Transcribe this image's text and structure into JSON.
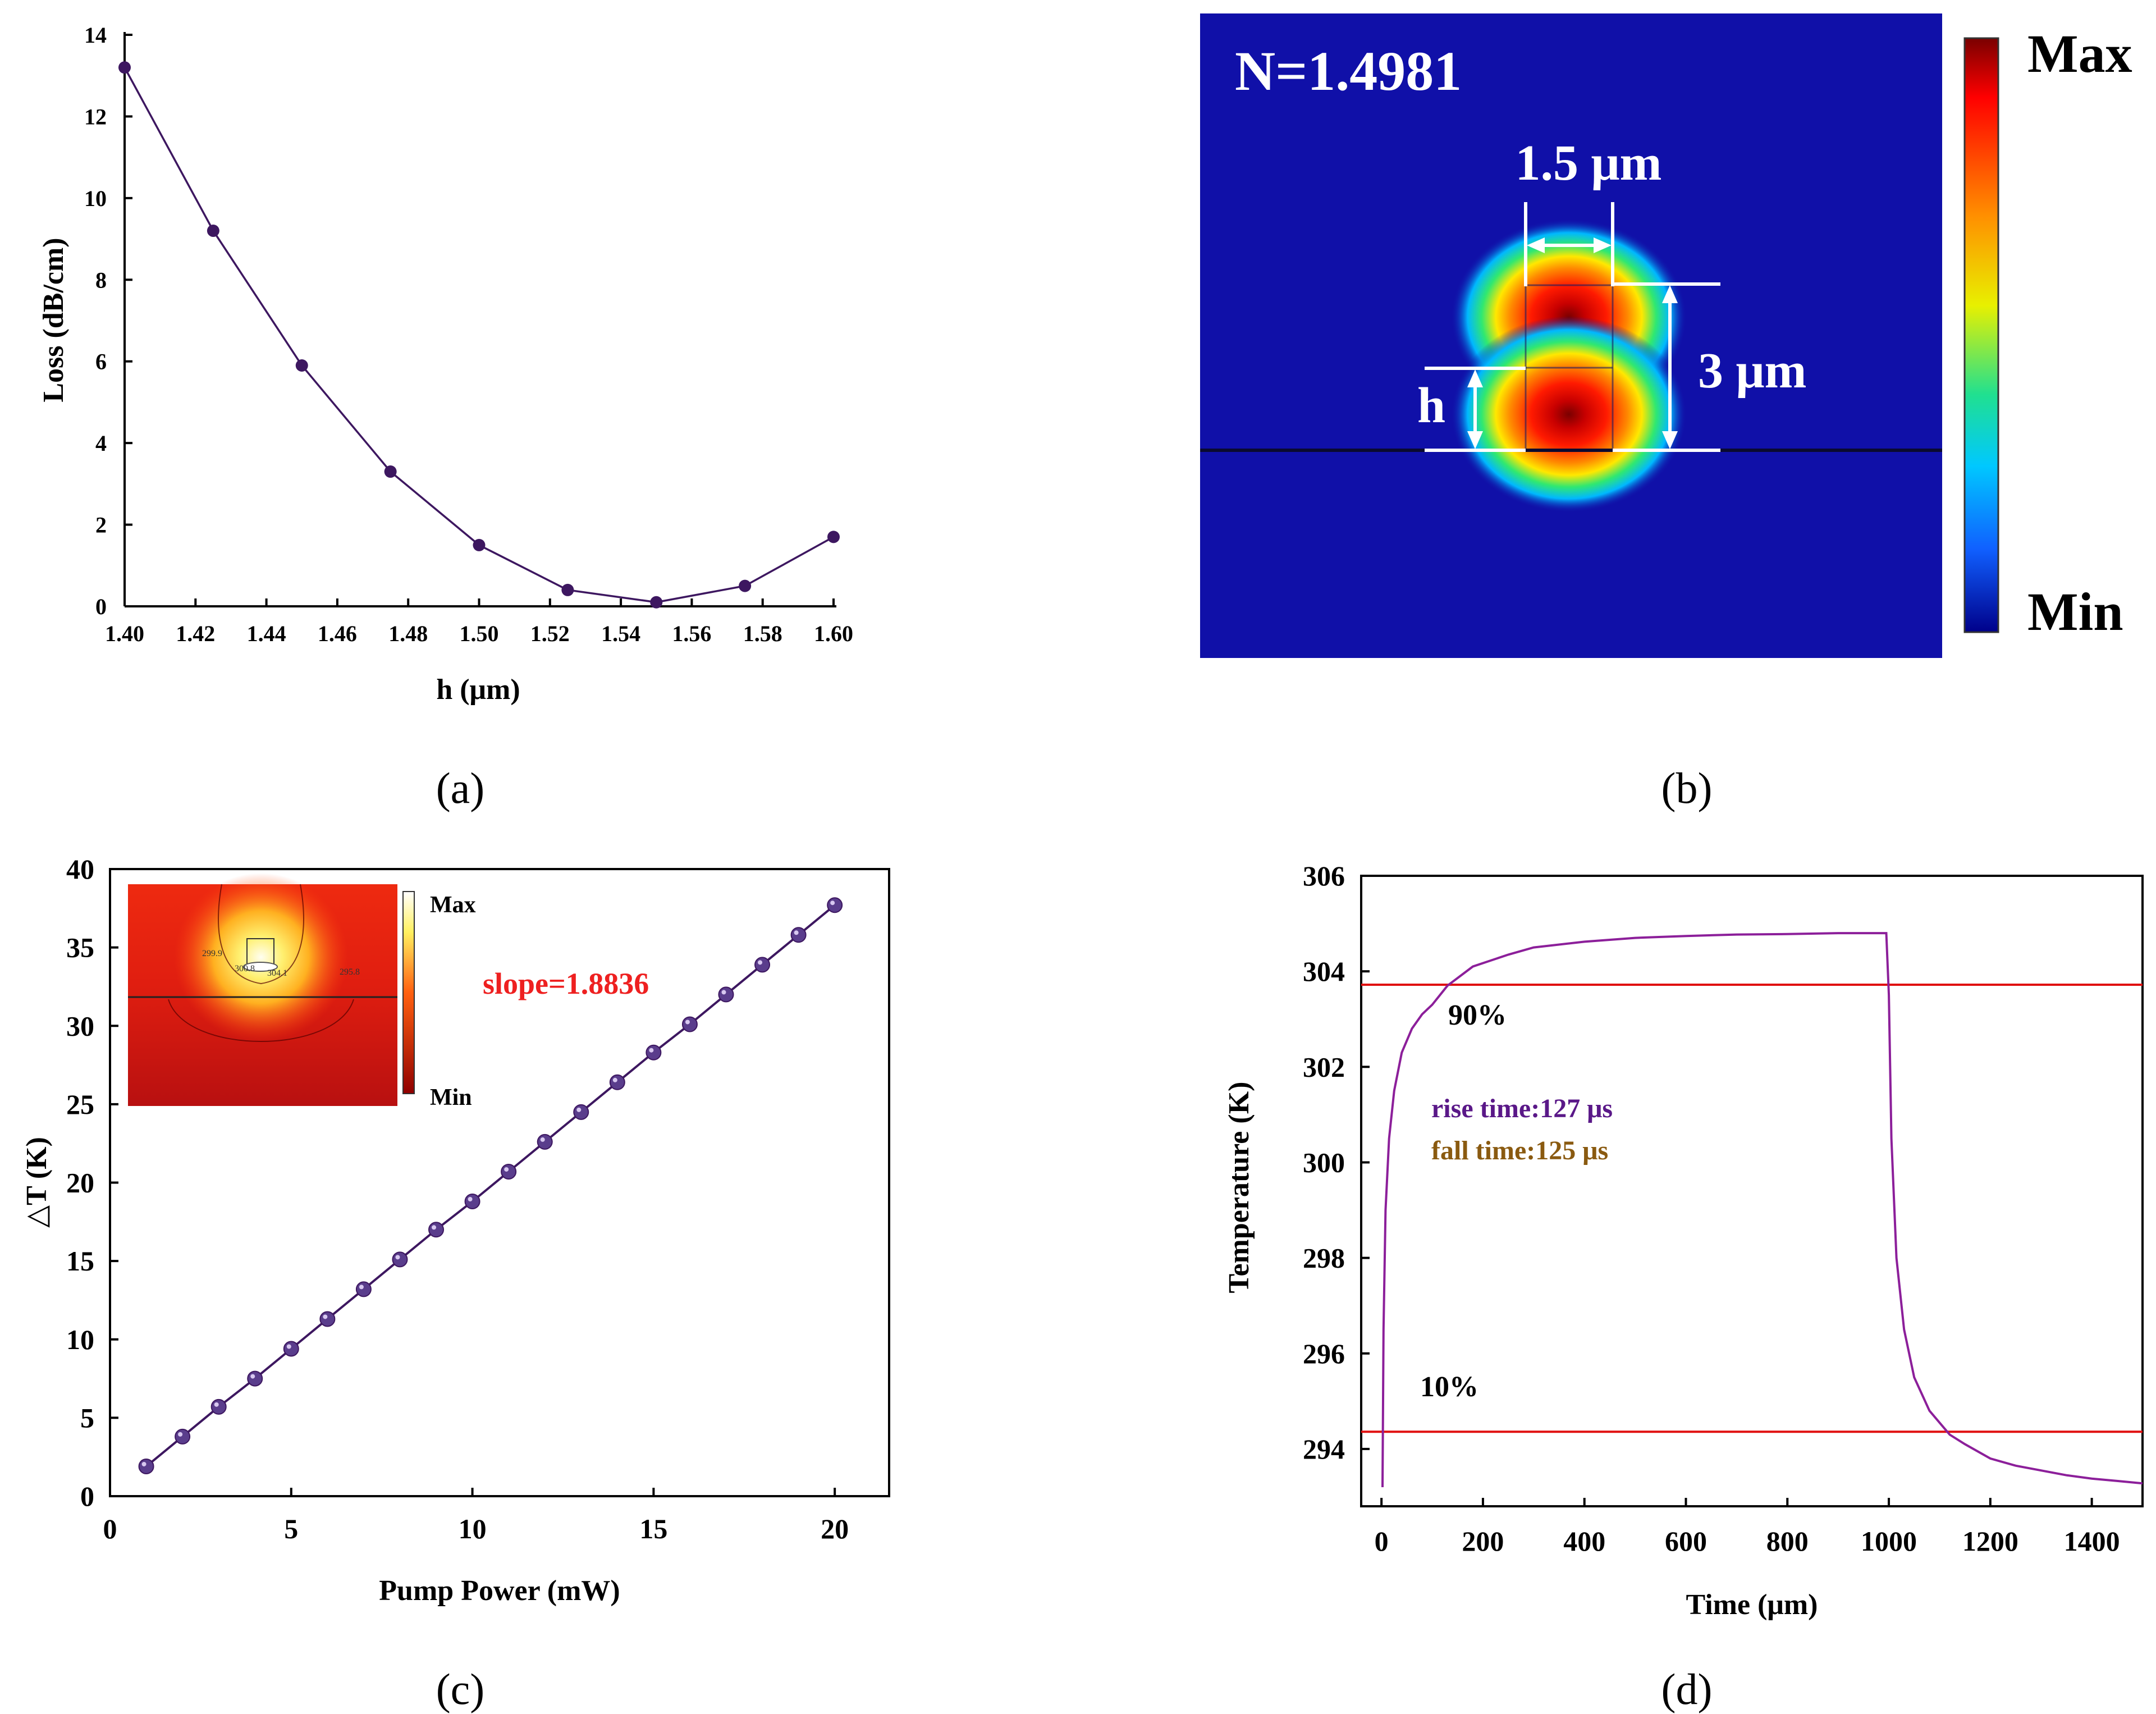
{
  "labels": {
    "a": "(a)",
    "b": "(b)",
    "c": "(c)",
    "d": "(d)"
  },
  "colors": {
    "series": "#3d1760",
    "marker_c": "#5a3d8c",
    "line_d": "#8c1f9a",
    "ref": "#e01010",
    "rise": "#5a1888",
    "fall": "#8a5a10",
    "slope": "#ee2020",
    "mode_bg": "#1010a8"
  },
  "chart_data": [
    {
      "id": "a",
      "type": "line",
      "title": "",
      "xlabel": "h (μm)",
      "ylabel": "Loss (dB/cm)",
      "xlim": [
        1.4,
        1.6
      ],
      "ylim": [
        0,
        14
      ],
      "xticks": [
        "1.40",
        "1.42",
        "1.44",
        "1.46",
        "1.48",
        "1.50",
        "1.52",
        "1.54",
        "1.56",
        "1.58",
        "1.60"
      ],
      "yticks": [
        "0",
        "2",
        "4",
        "6",
        "8",
        "10",
        "12",
        "14"
      ],
      "x": [
        1.4,
        1.425,
        1.45,
        1.475,
        1.5,
        1.525,
        1.55,
        1.575,
        1.6
      ],
      "y": [
        13.2,
        9.2,
        5.9,
        3.3,
        1.5,
        0.4,
        0.1,
        0.5,
        1.7
      ]
    },
    {
      "id": "b",
      "type": "heatmap",
      "annotation": "N=1.4981",
      "width_label": "1.5 μm",
      "height_label": "3 μm",
      "h_label": "h",
      "colorbar_max": "Max",
      "colorbar_min": "Min"
    },
    {
      "id": "c",
      "type": "line",
      "title": "",
      "xlabel": "Pump Power (mW)",
      "ylabel": "△T (K)",
      "xlim": [
        0,
        21.5
      ],
      "ylim": [
        0,
        40
      ],
      "xticks": [
        "0",
        "5",
        "10",
        "15",
        "20"
      ],
      "yticks": [
        "0",
        "5",
        "10",
        "15",
        "20",
        "25",
        "30",
        "35",
        "40"
      ],
      "x": [
        1,
        2,
        3,
        4,
        5,
        6,
        7,
        8,
        9,
        10,
        11,
        12,
        13,
        14,
        15,
        16,
        17,
        18,
        19,
        20
      ],
      "y": [
        1.9,
        3.8,
        5.7,
        7.5,
        9.4,
        11.3,
        13.2,
        15.1,
        17.0,
        18.8,
        20.7,
        22.6,
        24.5,
        26.4,
        28.3,
        30.1,
        32.0,
        33.9,
        35.8,
        37.7
      ],
      "annotation": "slope=1.8836",
      "inset": {
        "max": "Max",
        "min": "Min",
        "contour_labels": [
          "299.9",
          "300.8",
          "304.1",
          "295.8"
        ]
      }
    },
    {
      "id": "d",
      "type": "line",
      "title": "",
      "xlabel": "Time (μm)",
      "ylabel": "Temperature (K)",
      "xlim": [
        -40,
        1500
      ],
      "ylim": [
        292.8,
        306
      ],
      "xticks": [
        "0",
        "200",
        "400",
        "600",
        "800",
        "1000",
        "1200",
        "1400"
      ],
      "yticks": [
        "294",
        "296",
        "298",
        "300",
        "302",
        "304",
        "306"
      ],
      "x": [
        2,
        4,
        8,
        15,
        25,
        40,
        60,
        80,
        100,
        130,
        180,
        250,
        300,
        400,
        500,
        600,
        700,
        800,
        900,
        995,
        1000,
        1005,
        1015,
        1030,
        1050,
        1080,
        1120,
        1150,
        1200,
        1250,
        1300,
        1350,
        1400,
        1450,
        1500
      ],
      "y": [
        293.2,
        296.5,
        299.0,
        300.5,
        301.5,
        302.3,
        302.8,
        303.1,
        303.3,
        303.7,
        304.1,
        304.35,
        304.5,
        304.62,
        304.7,
        304.74,
        304.77,
        304.78,
        304.8,
        304.8,
        303.5,
        300.5,
        298.0,
        296.5,
        295.5,
        294.8,
        294.3,
        294.1,
        293.8,
        293.65,
        293.55,
        293.45,
        293.38,
        293.33,
        293.28
      ],
      "reference_lines": [
        {
          "y": 303.72,
          "label": "90%"
        },
        {
          "y": 294.36,
          "label": "10%"
        }
      ],
      "annotations": [
        "rise time:127 μs",
        "fall time:125 μs"
      ]
    }
  ]
}
